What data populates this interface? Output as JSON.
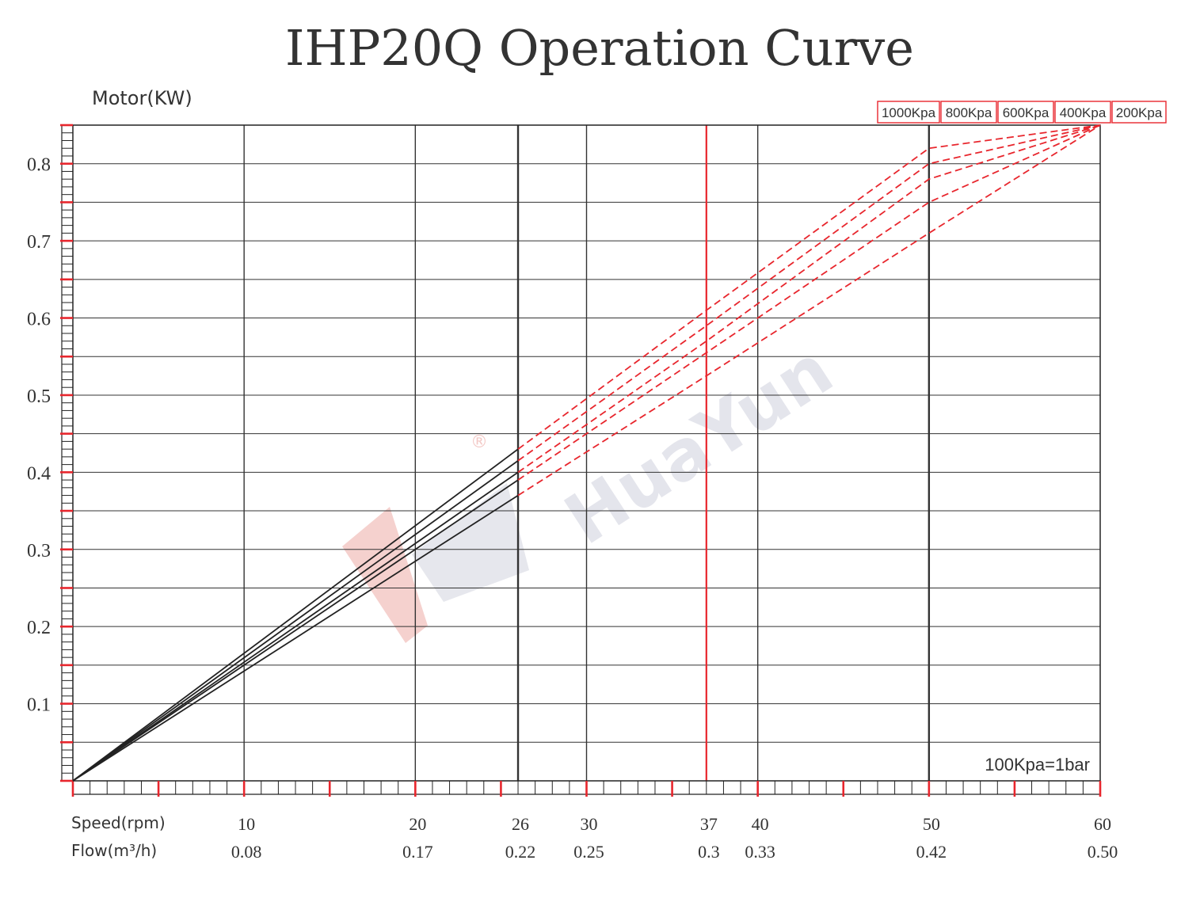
{
  "chart_data": {
    "type": "line",
    "title": "IHP20Q Operation Curve",
    "ylabel": "Motor(KW)",
    "xlabel_rows": [
      "Speed(rpm)",
      "Flow(m³/h)"
    ],
    "xlim": [
      0,
      60
    ],
    "ylim": [
      0,
      0.85
    ],
    "yticks": [
      {
        "value": 0.1,
        "label": "0.1"
      },
      {
        "value": 0.2,
        "label": "0.2"
      },
      {
        "value": 0.3,
        "label": "0.3"
      },
      {
        "value": 0.4,
        "label": "0.4"
      },
      {
        "value": 0.5,
        "label": "0.5"
      },
      {
        "value": 0.6,
        "label": "0.6"
      },
      {
        "value": 0.7,
        "label": "0.7"
      },
      {
        "value": 0.8,
        "label": "0.8"
      }
    ],
    "xticks": [
      {
        "speed": 10,
        "speed_label": "10",
        "flow_label": "0.08",
        "grid": "dark"
      },
      {
        "speed": 20,
        "speed_label": "20",
        "flow_label": "0.17",
        "grid": "dark"
      },
      {
        "speed": 26,
        "speed_label": "26",
        "flow_label": "0.22",
        "grid": "bold"
      },
      {
        "speed": 30,
        "speed_label": "30",
        "flow_label": "0.25",
        "grid": "dark"
      },
      {
        "speed": 37,
        "speed_label": "37",
        "flow_label": "0.3",
        "grid": "red"
      },
      {
        "speed": 40,
        "speed_label": "40",
        "flow_label": "0.33",
        "grid": "dark"
      },
      {
        "speed": 50,
        "speed_label": "50",
        "flow_label": "0.42",
        "grid": "bold"
      },
      {
        "speed": 60,
        "speed_label": "60",
        "flow_label": "0.50",
        "grid": "none"
      }
    ],
    "solid_until_speed": 26,
    "series": [
      {
        "name": "1000Kpa",
        "x": [
          0,
          26,
          37,
          50,
          60
        ],
        "y": [
          0,
          0.43,
          0.61,
          0.82,
          0.85
        ]
      },
      {
        "name": "800Kpa",
        "x": [
          0,
          26,
          37,
          50,
          60
        ],
        "y": [
          0,
          0.415,
          0.59,
          0.8,
          0.85
        ]
      },
      {
        "name": "600Kpa",
        "x": [
          0,
          26,
          37,
          50,
          60
        ],
        "y": [
          0,
          0.4,
          0.57,
          0.78,
          0.85
        ]
      },
      {
        "name": "400Kpa",
        "x": [
          0,
          26,
          37,
          50,
          60
        ],
        "y": [
          0,
          0.39,
          0.555,
          0.75,
          0.85
        ]
      },
      {
        "name": "200Kpa",
        "x": [
          0,
          26,
          37,
          50,
          60
        ],
        "y": [
          0,
          0.37,
          0.525,
          0.71,
          0.85
        ]
      }
    ],
    "legend_position": "top-right",
    "annotation": "100Kpa=1bar",
    "watermark": {
      "text": "HuaYun",
      "symbol": "®"
    }
  },
  "colors": {
    "accent": "#e8262d",
    "ink": "#222222",
    "grid": "#333333",
    "watermark_red": "#f3c9c6",
    "watermark_grey": "#dcdde6"
  }
}
